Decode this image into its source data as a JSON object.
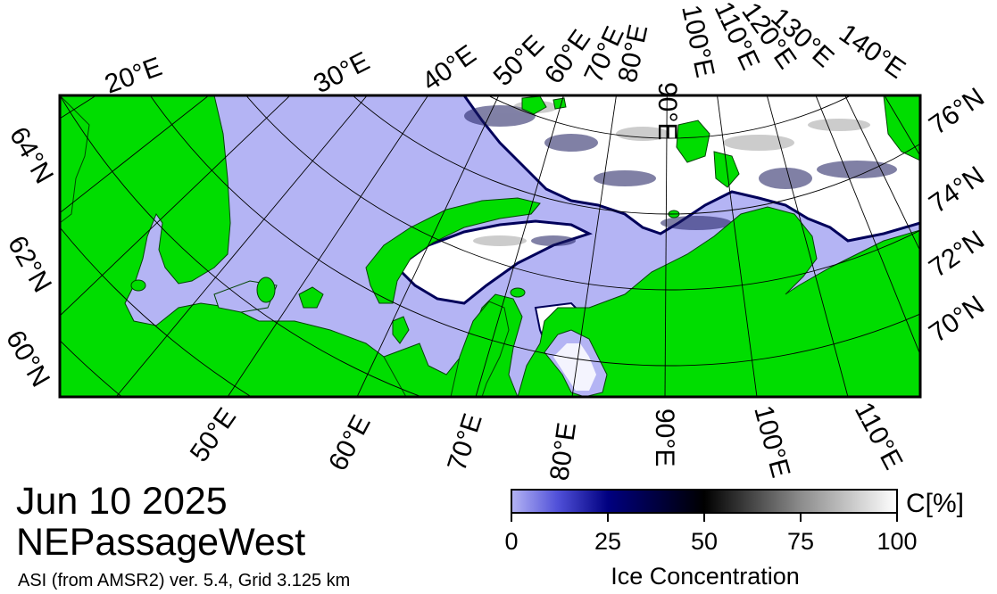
{
  "date": "Jun 10 2025",
  "region": "NEPassageWest",
  "source_line": "ASI (from AMSR2) ver. 5.4,  Grid 3.125 km",
  "colorbar": {
    "unit_label": "C[%]",
    "title": "Ice Concentration",
    "ticks": [
      "0",
      "25",
      "50",
      "75",
      "100"
    ]
  },
  "lon_labels_top": [
    "20°E",
    "30°E",
    "40°E",
    "50°E",
    "60°E",
    "70°E",
    "80°E",
    "90°E",
    "100°E",
    "110°E",
    "120°E",
    "130°E",
    "140°E"
  ],
  "lon_labels_bottom": [
    "50°E",
    "60°E",
    "70°E",
    "80°E",
    "90°E",
    "100°E",
    "110°E"
  ],
  "lat_labels_left": [
    "64°N",
    "62°N",
    "60°N"
  ],
  "lat_labels_right": [
    "76°N",
    "74°N",
    "72°N",
    "70°N"
  ],
  "colors": {
    "land": "#00dd00",
    "open_water": "#b4b4f4",
    "ice_full": "#ffffff",
    "ice_edge": "#00005a",
    "graticule": "#000000"
  },
  "legend_stops": [
    {
      "pct": 0,
      "color": "#b4b4f4"
    },
    {
      "pct": 25,
      "color": "#000080"
    },
    {
      "pct": 50,
      "color": "#000000"
    },
    {
      "pct": 75,
      "color": "#8c8c8c"
    },
    {
      "pct": 100,
      "color": "#ffffff"
    }
  ]
}
